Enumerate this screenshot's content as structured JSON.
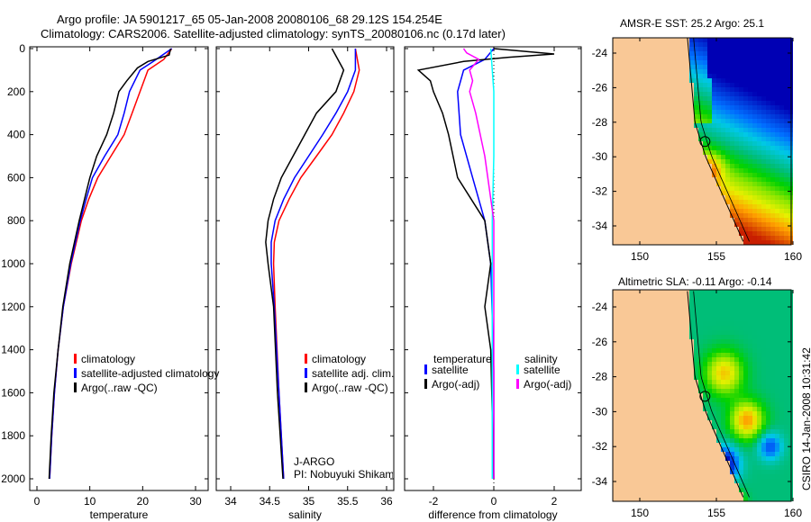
{
  "title_line1": "Argo profile: JA 5901217_65 05-Jan-2008 20080106_68 29.12S 154.254E",
  "title_line2": "Climatology: CARS2006. Satellite-adjusted climatology: synTS_20080106.nc (0.17d later)",
  "side_label": "CSIRO 14-Jan-2008 10:31:42",
  "float_info": {
    "line1": "J-ARGO",
    "line2": "PI: Nobuyuki Shikama"
  },
  "colors": {
    "climatology": "#ff0000",
    "satellite": "#0000ff",
    "argo": "#000000",
    "cyan": "#00ffff",
    "magenta": "#ff00ff",
    "land": "#f9c896"
  },
  "chart_data": [
    {
      "type": "line",
      "xlabel": "temperature",
      "ylabel": "",
      "xlim": [
        -1,
        32
      ],
      "ylim": [
        2000,
        0
      ],
      "xticks": [
        "0",
        "10",
        "20",
        "30"
      ],
      "yticks": [
        "0",
        "200",
        "400",
        "600",
        "800",
        "1000",
        "1200",
        "1400",
        "1600",
        "1800",
        "2000"
      ],
      "legend": [
        "climatology",
        "satellite-adjusted climatology",
        "Argo(..raw -QC)"
      ],
      "series": [
        {
          "name": "climatology",
          "depth": [
            0,
            50,
            100,
            200,
            300,
            400,
            500,
            600,
            700,
            800,
            1000,
            1200,
            1400,
            1600,
            1800,
            2000
          ],
          "values": [
            25.5,
            24,
            21,
            19.5,
            18,
            16.5,
            14,
            11.5,
            9.8,
            8.4,
            6.5,
            5,
            4,
            3.3,
            2.8,
            2.4
          ]
        },
        {
          "name": "satellite-adjusted climatology",
          "depth": [
            0,
            60,
            100,
            200,
            300,
            400,
            500,
            600,
            700,
            800,
            1000,
            1200,
            1400,
            1600,
            1800,
            2000
          ],
          "values": [
            25.5,
            22,
            19.5,
            17.5,
            16.5,
            15.3,
            12.8,
            10.5,
            9.3,
            8.2,
            6.4,
            5,
            4,
            3.3,
            2.8,
            2.4
          ]
        },
        {
          "name": "Argo(..raw -QC)",
          "depth": [
            0,
            30,
            60,
            90,
            150,
            200,
            250,
            300,
            400,
            500,
            600,
            700,
            800,
            1000,
            1200,
            1400,
            1600,
            1800,
            2000
          ],
          "values": [
            25.3,
            25,
            21,
            19,
            17,
            15.5,
            15,
            14.5,
            13.2,
            11.3,
            10,
            9,
            8,
            6.2,
            4.9,
            4,
            3.2,
            2.7,
            2.3
          ]
        }
      ]
    },
    {
      "type": "line",
      "xlabel": "salinity",
      "xlim": [
        33.8,
        36.1
      ],
      "ylim": [
        2000,
        0
      ],
      "xticks": [
        "34",
        "34.5",
        "35",
        "35.5",
        "36"
      ],
      "legend": [
        "climatology",
        "satellite adj. clim.",
        "Argo(..raw -QC)"
      ],
      "series": [
        {
          "name": "climatology",
          "depth": [
            0,
            100,
            200,
            300,
            400,
            500,
            600,
            700,
            800,
            900,
            1000,
            1200,
            1600,
            2000
          ],
          "values": [
            35.6,
            35.65,
            35.58,
            35.45,
            35.3,
            35.1,
            34.9,
            34.75,
            34.62,
            34.56,
            34.55,
            34.57,
            34.62,
            34.68
          ]
        },
        {
          "name": "satellite adj. clim.",
          "depth": [
            0,
            100,
            200,
            300,
            400,
            500,
            600,
            700,
            800,
            900,
            1000,
            1200,
            1600,
            2000
          ],
          "values": [
            35.6,
            35.6,
            35.5,
            35.35,
            35.18,
            35.0,
            34.82,
            34.68,
            34.57,
            34.52,
            34.52,
            34.56,
            34.62,
            34.68
          ]
        },
        {
          "name": "Argo(..raw -QC)",
          "depth": [
            0,
            100,
            200,
            300,
            400,
            500,
            600,
            700,
            800,
            900,
            1000,
            1200,
            1600,
            2000
          ],
          "values": [
            35.3,
            35.45,
            35.35,
            35.1,
            34.95,
            34.8,
            34.65,
            34.55,
            34.48,
            34.45,
            34.48,
            34.55,
            34.6,
            34.67
          ]
        }
      ]
    },
    {
      "type": "line",
      "xlabel": "difference from climatology",
      "xlim": [
        -3,
        3
      ],
      "ylim": [
        2000,
        0
      ],
      "xticks": [
        "-2",
        "0",
        "2"
      ],
      "legend_temperature": {
        "title": "temperature",
        "items": [
          "satellite",
          "Argo(-adj)"
        ]
      },
      "legend_salinity": {
        "title": "salinity",
        "items": [
          "satellite",
          "Argo(-adj)"
        ]
      },
      "series": [
        {
          "name": "temperature satellite",
          "depth": [
            0,
            50,
            100,
            200,
            400,
            600,
            800,
            1000,
            1500,
            2000
          ],
          "values": [
            0,
            -0.3,
            -1,
            -1.2,
            -1.1,
            -0.7,
            -0.3,
            -0.1,
            0,
            0
          ]
        },
        {
          "name": "temperature Argo(-adj)",
          "depth": [
            0,
            25,
            40,
            60,
            100,
            150,
            200,
            300,
            400,
            600,
            800,
            1000,
            1200,
            1400,
            2000
          ],
          "values": [
            0,
            2,
            0.5,
            -1,
            -2.5,
            -2.1,
            -2,
            -1.7,
            -1.5,
            -1.2,
            -0.3,
            -0.1,
            -0.3,
            -0.1,
            0
          ]
        },
        {
          "name": "salinity satellite",
          "depth": [
            0,
            100,
            200,
            500,
            800,
            1200,
            2000
          ],
          "values": [
            -0.1,
            -0.05,
            0,
            0,
            -0.05,
            -0.05,
            -0.05
          ]
        },
        {
          "name": "salinity Argo(-adj)",
          "depth": [
            0,
            20,
            50,
            100,
            150,
            200,
            300,
            500,
            800,
            1000,
            2000
          ],
          "values": [
            -1,
            -0.9,
            -0.5,
            -0.8,
            -0.7,
            -0.8,
            -0.6,
            -0.3,
            0,
            0,
            0
          ]
        }
      ]
    },
    {
      "type": "heatmap",
      "title": "AMSR-E SST: 25.2 Argo: 25.1",
      "xlim": [
        148.2,
        160.2
      ],
      "ylim": [
        -35.1,
        -23.1
      ],
      "xticks": [
        "150",
        "155",
        "160"
      ],
      "yticks": [
        "-24",
        "-26",
        "-28",
        "-30",
        "-32",
        "-34"
      ],
      "marker": {
        "lon": 154.254,
        "lat": -29.12
      }
    },
    {
      "type": "heatmap",
      "title": "Altimetric SLA: -0.11 Argo: -0.14",
      "xlim": [
        148.2,
        160.2
      ],
      "ylim": [
        -35.1,
        -23.1
      ],
      "xticks": [
        "150",
        "155",
        "160"
      ],
      "yticks": [
        "-24",
        "-26",
        "-28",
        "-30",
        "-32",
        "-34"
      ],
      "marker": {
        "lon": 154.254,
        "lat": -29.12
      }
    }
  ]
}
